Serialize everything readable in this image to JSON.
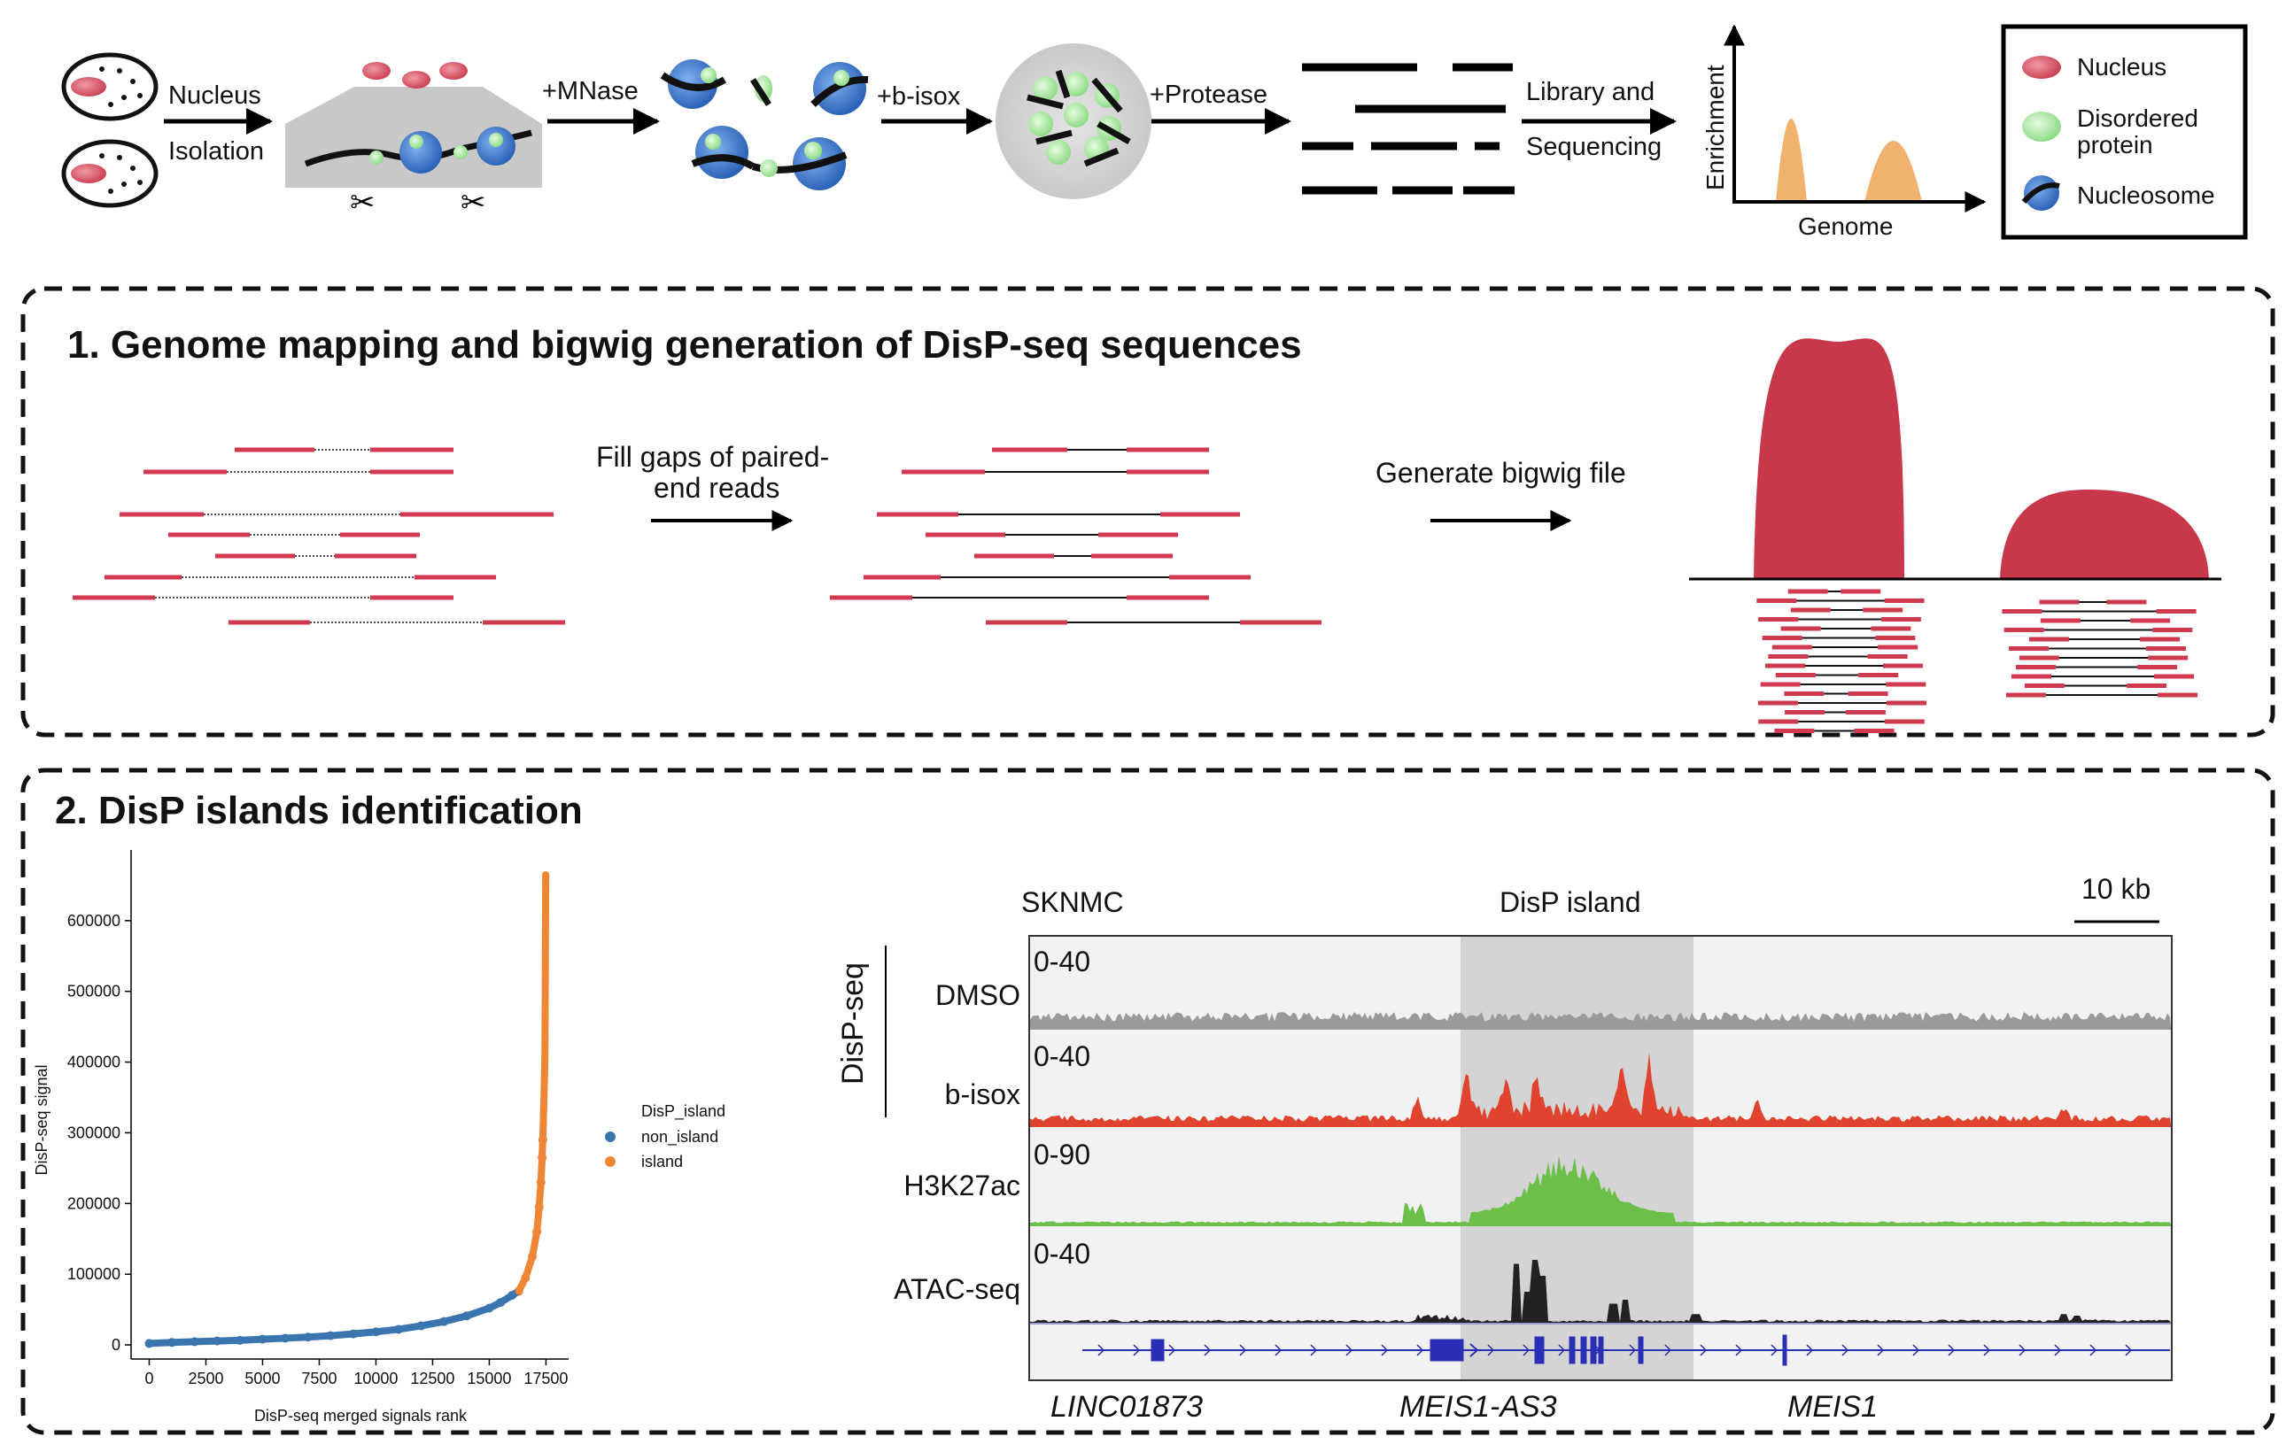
{
  "workflow": {
    "step_nucleus_top": "Nucleus",
    "step_nucleus_bottom": "Isolation",
    "step_mnase": "+MNase",
    "step_bisox": "+b-isox",
    "step_protease": "+Protease",
    "step_library_top": "Library and",
    "step_library_bottom": "Sequencing",
    "axis_y": "Enrichment",
    "axis_x": "Genome",
    "legend": {
      "nucleus": "Nucleus",
      "disordered_1": "Disordered",
      "disordered_2": "protein",
      "nucleosome": "Nucleosome"
    },
    "colors": {
      "nucleus": "#d9505f",
      "disordered": "#a8e6a0",
      "nucleosome": "#3a7bd5",
      "peak": "#f0b26e"
    }
  },
  "panel1": {
    "title": "1. Genome mapping and bigwig generation of DisP-seq sequences",
    "fill_gaps_1": "Fill gaps of paired-",
    "fill_gaps_2": "end reads",
    "generate": "Generate bigwig file",
    "colors": {
      "read": "#cf3a4e",
      "peak": "#c9374b"
    }
  },
  "panel2": {
    "title": "2. DisP islands identification",
    "browser": {
      "cell_line": "SKNMC",
      "island_label": "DisP island",
      "scale": "10 kb",
      "group_label": "DisP-seq",
      "tracks": [
        {
          "name": "DMSO",
          "range": "0-40",
          "color": "#9a9a9a"
        },
        {
          "name": "b-isox",
          "range": "0-40",
          "color": "#e0442e"
        },
        {
          "name": "H3K27ac",
          "range": "0-90",
          "color": "#6cc04a"
        },
        {
          "name": "ATAC-seq",
          "range": "0-40",
          "color": "#222222"
        }
      ],
      "genes": [
        "LINC01873",
        "MEIS1-AS3",
        "MEIS1"
      ],
      "gene_color": "#2a2fb5",
      "highlight_color": "#d4d4d4"
    }
  },
  "chart_data": {
    "type": "scatter",
    "xlabel": "DisP-seq merged signals rank",
    "ylabel": "DisP-seq signal",
    "xlim": [
      -800,
      18500
    ],
    "ylim": [
      -20000,
      700000
    ],
    "xticks": [
      0,
      2500,
      5000,
      7500,
      10000,
      12500,
      15000,
      17500
    ],
    "xtick_labels": [
      "0",
      "2500",
      "5000",
      "7500",
      "10000",
      "12500",
      "15000",
      "17500"
    ],
    "yticks": [
      0,
      100000,
      200000,
      300000,
      400000,
      500000,
      600000
    ],
    "ytick_labels": [
      "0",
      "100000",
      "200000",
      "300000",
      "400000",
      "500000",
      "600000"
    ],
    "legend_title": "DisP_island",
    "legend_position": "right",
    "series": [
      {
        "name": "non_island",
        "color": "#3b75af",
        "x": [
          0,
          1000,
          2000,
          3000,
          4000,
          5000,
          6000,
          7000,
          8000,
          9000,
          10000,
          11000,
          12000,
          13000,
          14000,
          15000,
          15500,
          16000,
          16300
        ],
        "y": [
          2000,
          3500,
          4500,
          5500,
          6500,
          8000,
          9500,
          11000,
          13000,
          15500,
          18500,
          22000,
          27000,
          33000,
          41000,
          52000,
          60000,
          70000,
          76000
        ]
      },
      {
        "name": "island",
        "color": "#ef8636",
        "x": [
          16300,
          16600,
          16900,
          17100,
          17200,
          17280,
          17330,
          17360,
          17380,
          17395,
          17410,
          17420,
          17430,
          17440,
          17450,
          17460,
          17470,
          17480,
          17490,
          17500
        ],
        "y": [
          76000,
          95000,
          125000,
          160000,
          195000,
          230000,
          265000,
          290000,
          310000,
          330000,
          345000,
          360000,
          375000,
          385000,
          405000,
          440000,
          510000,
          595000,
          665000,
          420000
        ]
      }
    ]
  }
}
